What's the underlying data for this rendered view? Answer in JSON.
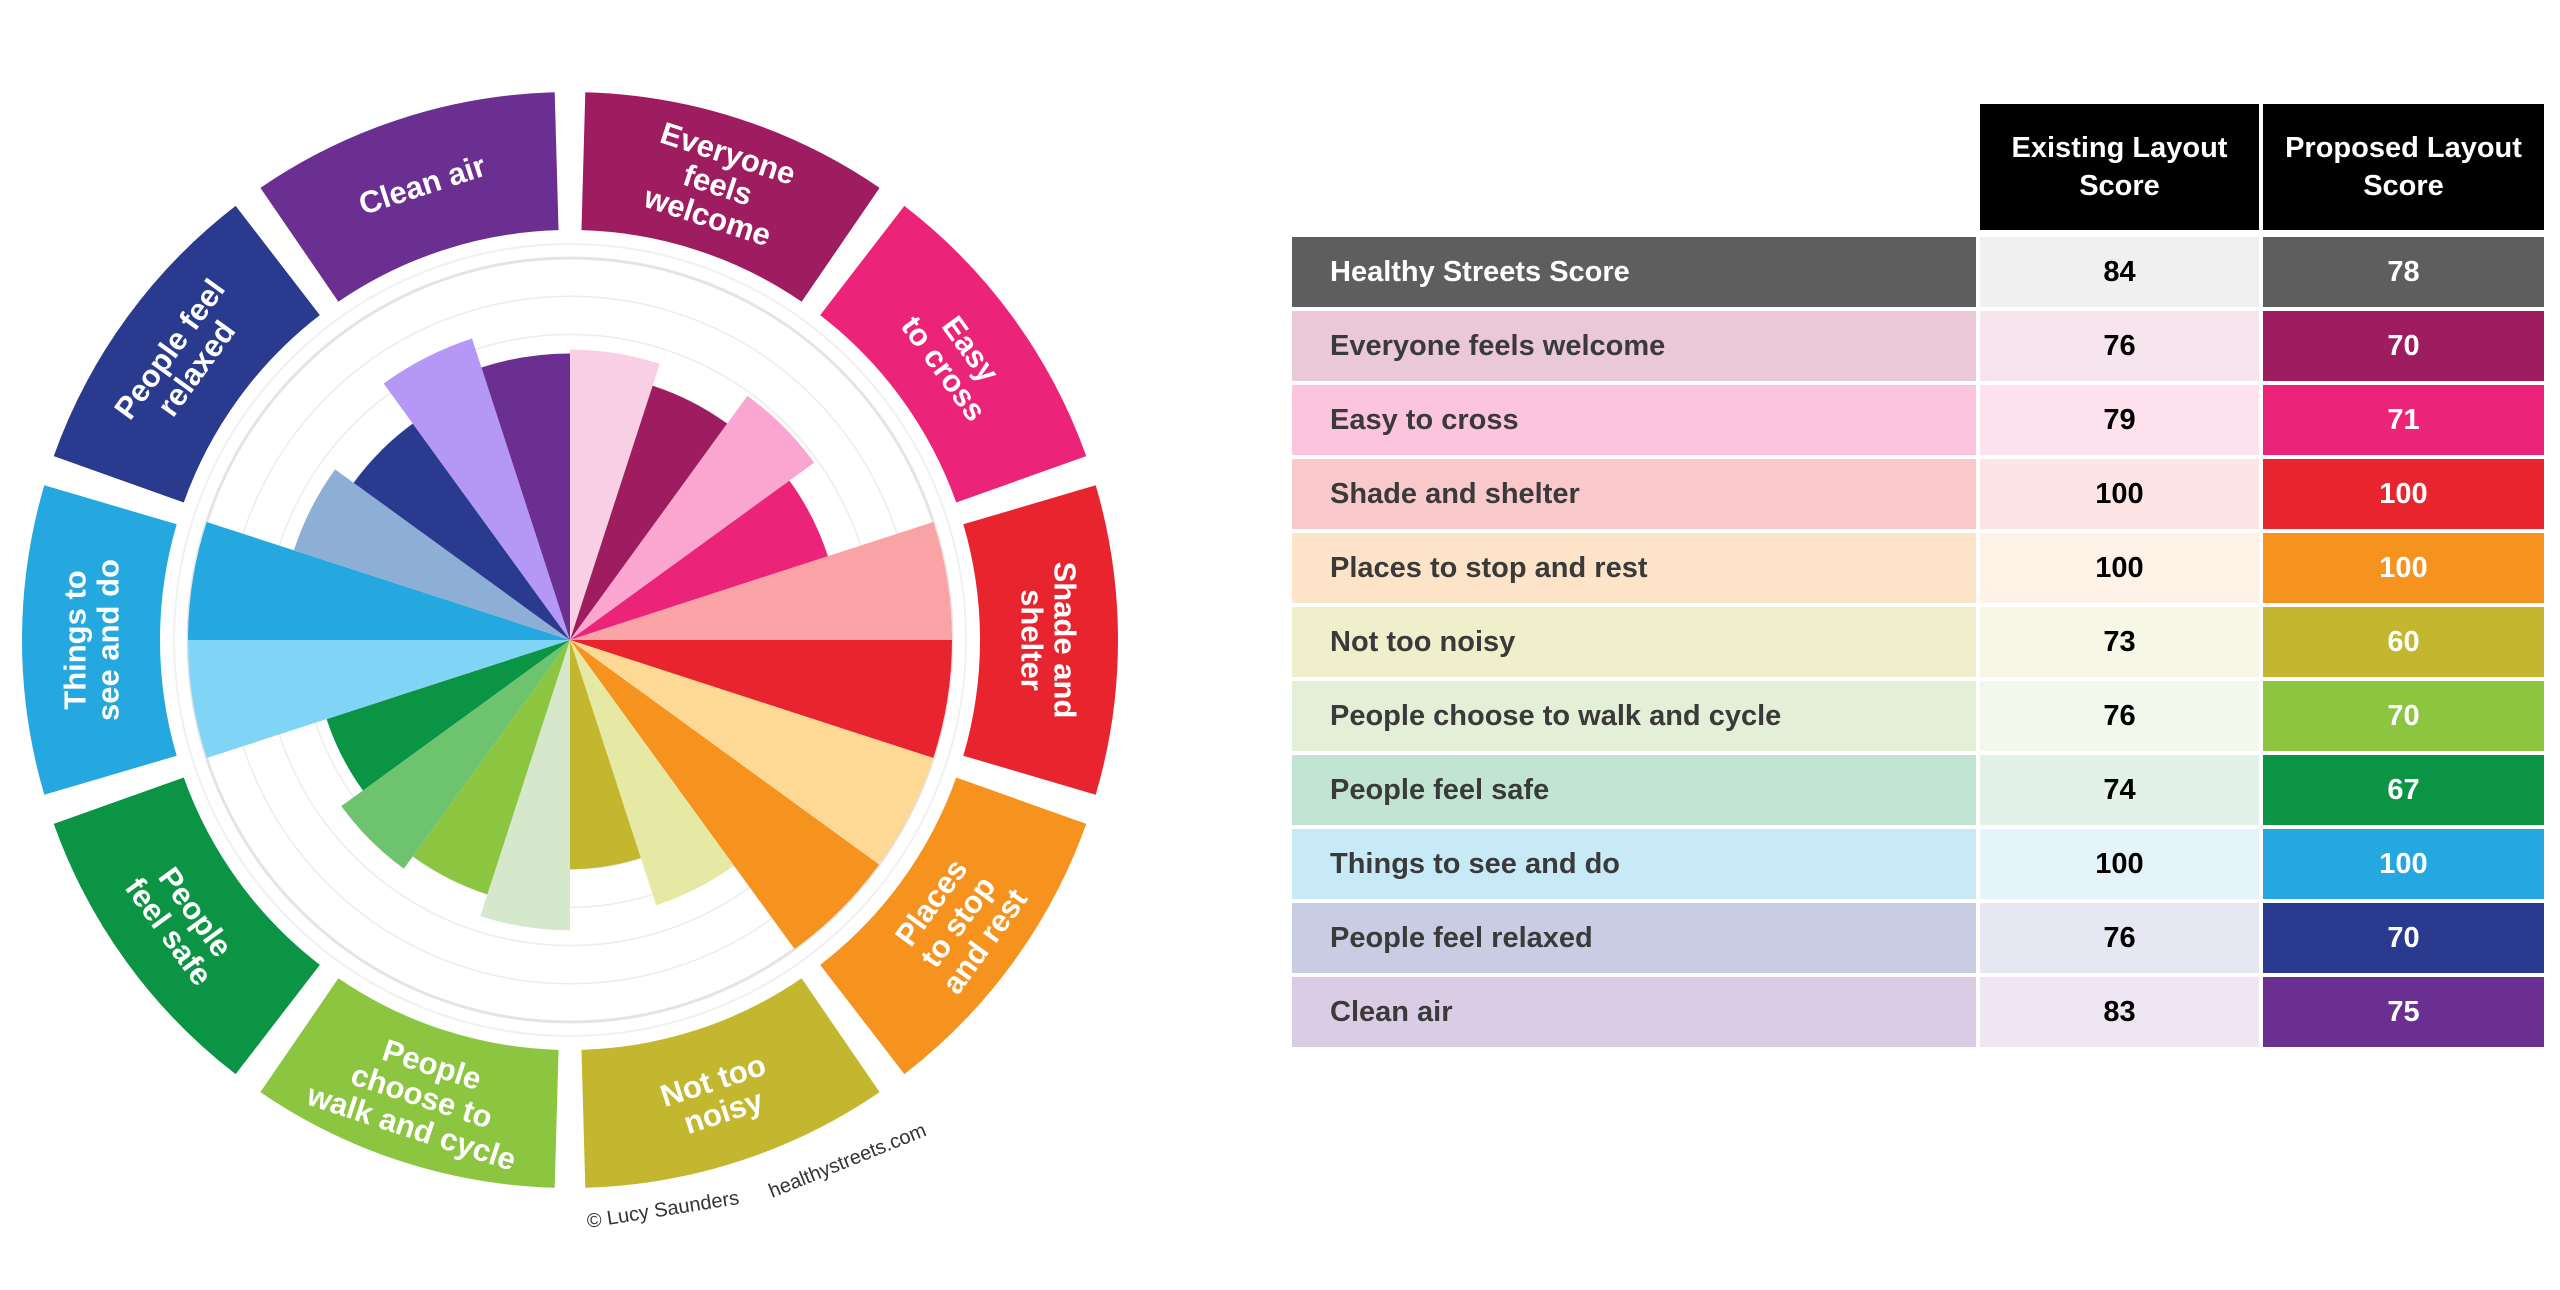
{
  "chart_data": [
    {
      "type": "polar-bar",
      "max": 100,
      "categories": [
        {
          "name": "Everyone feels welcome",
          "label_lines": [
            "Everyone",
            "feels",
            "welcome"
          ],
          "color": "#9E1C60",
          "light": "#F8CFE3",
          "existing": 76,
          "proposed": 70
        },
        {
          "name": "Easy to cross",
          "label_lines": [
            "Easy",
            "to cross"
          ],
          "color": "#EC2479",
          "light": "#FBA5D1",
          "existing": 79,
          "proposed": 71
        },
        {
          "name": "Shade and shelter",
          "label_lines": [
            "Shade and",
            "shelter"
          ],
          "color": "#E8252F",
          "light": "#F9A3A6",
          "existing": 100,
          "proposed": 100
        },
        {
          "name": "Places to stop and rest",
          "label_lines": [
            "Places",
            "to stop",
            "and rest"
          ],
          "color": "#F6931E",
          "light": "#FDD995",
          "existing": 100,
          "proposed": 100
        },
        {
          "name": "Not too noisy",
          "label_lines": [
            "Not too",
            "noisy"
          ],
          "color": "#C3B72F",
          "light": "#E6E9A3",
          "existing": 73,
          "proposed": 60
        },
        {
          "name": "People choose to walk and cycle",
          "label_lines": [
            "People",
            "choose to",
            "walk and cycle"
          ],
          "color": "#8CC540",
          "light": "#D6E8CB",
          "existing": 76,
          "proposed": 70
        },
        {
          "name": "People feel safe",
          "label_lines": [
            "People",
            "feel safe"
          ],
          "color": "#0A9444",
          "light": "#6EC36F",
          "existing": 74,
          "proposed": 67
        },
        {
          "name": "Things to see and do",
          "label_lines": [
            "Things to",
            "see and do"
          ],
          "color": "#25A8E0",
          "light": "#80D5F7",
          "existing": 100,
          "proposed": 100
        },
        {
          "name": "People feel relaxed",
          "label_lines": [
            "People feel",
            "relaxed"
          ],
          "color": "#293A8F",
          "light": "#8DAFD6",
          "existing": 76,
          "proposed": 70
        },
        {
          "name": "Clean air",
          "label_lines": [
            "Clean air"
          ],
          "color": "#6A2F91",
          "light": "#B597F6",
          "existing": 83,
          "proposed": 75
        }
      ]
    },
    {
      "type": "table",
      "columns": [
        "",
        "Existing Layout Score",
        "Proposed Layout Score"
      ],
      "rows": [
        {
          "name": "Healthy Streets Score",
          "existing": 84,
          "proposed": 78,
          "row_bg": "#5E5E5E",
          "name_color": "#FFFFFF",
          "existing_bg": "#F0F0F0",
          "proposed_bg": "#5E5E5E"
        },
        {
          "name": "Everyone feels welcome",
          "existing": 76,
          "proposed": 70,
          "row_bg": "#EAC8D8",
          "existing_bg": "#F7E5EE",
          "proposed_bg": "#9E1C60"
        },
        {
          "name": "Easy to cross",
          "existing": 79,
          "proposed": 71,
          "row_bg": "#FDC4DE",
          "existing_bg": "#FEE3EF",
          "proposed_bg": "#EC2479"
        },
        {
          "name": "Shade and shelter",
          "existing": 100,
          "proposed": 100,
          "row_bg": "#FAC9CB",
          "existing_bg": "#FDE5E6",
          "proposed_bg": "#E8252F"
        },
        {
          "name": "Places to stop and rest",
          "existing": 100,
          "proposed": 100,
          "row_bg": "#FDE4C8",
          "existing_bg": "#FEF3E6",
          "proposed_bg": "#F6931E"
        },
        {
          "name": "Not too noisy",
          "existing": 73,
          "proposed": 60,
          "row_bg": "#EFEFCB",
          "existing_bg": "#F7F7E6",
          "proposed_bg": "#C3B72F"
        },
        {
          "name": "People choose to walk and cycle",
          "existing": 76,
          "proposed": 70,
          "row_bg": "#E3EFD6",
          "existing_bg": "#F2F8EB",
          "proposed_bg": "#8CC540"
        },
        {
          "name": "People feel safe",
          "existing": 74,
          "proposed": 67,
          "row_bg": "#C2E4D2",
          "existing_bg": "#E2F2E9",
          "proposed_bg": "#0A9444"
        },
        {
          "name": "Things to see and do",
          "existing": 100,
          "proposed": 100,
          "row_bg": "#C8E9F6",
          "existing_bg": "#E5F4FB",
          "proposed_bg": "#25A8E0"
        },
        {
          "name": "People feel relaxed",
          "existing": 76,
          "proposed": 70,
          "row_bg": "#C9CDE3",
          "existing_bg": "#E6E7F2",
          "proposed_bg": "#293A8F"
        },
        {
          "name": "Clean air",
          "existing": 83,
          "proposed": 75,
          "row_bg": "#DACCE4",
          "existing_bg": "#EEE7F3",
          "proposed_bg": "#6A2F91"
        }
      ]
    }
  ],
  "credits": {
    "copyright": "© Lucy Saunders",
    "site": "healthystreets.com"
  }
}
